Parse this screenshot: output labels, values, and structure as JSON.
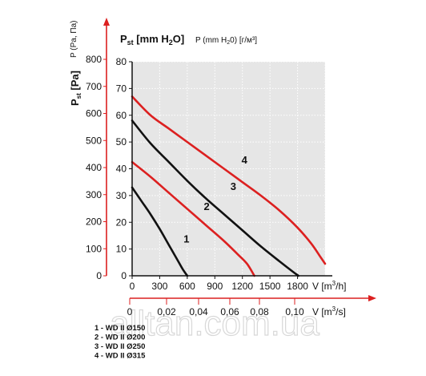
{
  "chart_data": {
    "type": "line",
    "y_primary_label": "Pst [mm H2O]",
    "y_primary_label_ru": "P (mm H20) [г/м³]",
    "y_secondary_label": "Pst [Pa]",
    "y_secondary_label_ru": "P (Pa, Па)",
    "y_ticks": [
      0,
      10,
      20,
      30,
      40,
      50,
      60,
      70,
      80
    ],
    "y_pa_ticks": [
      0,
      100,
      200,
      300,
      400,
      500,
      600,
      700,
      800
    ],
    "x_ticks_m3h": [
      0,
      300,
      600,
      900,
      1200,
      1500,
      1800
    ],
    "x_ticks_m3s": [
      "0",
      "0,02",
      "0,04",
      "0,06",
      "0,08",
      "0,10"
    ],
    "x_label_m3h": "V [m³/h]",
    "x_label_m3s": "V [m³/s]",
    "ylim": [
      0,
      80
    ],
    "xlim": [
      0,
      2100
    ],
    "grid": true,
    "series": [
      {
        "name": "1",
        "color": "#111111",
        "points": [
          [
            0,
            33
          ],
          [
            100,
            28
          ],
          [
            200,
            23
          ],
          [
            300,
            17.5
          ],
          [
            400,
            11.5
          ],
          [
            500,
            5.5
          ],
          [
            550,
            2.5
          ],
          [
            600,
            0
          ]
        ]
      },
      {
        "name": "2",
        "color": "#dc2020",
        "points": [
          [
            0,
            42.5
          ],
          [
            200,
            37
          ],
          [
            400,
            31
          ],
          [
            600,
            25
          ],
          [
            800,
            19
          ],
          [
            1000,
            13
          ],
          [
            1150,
            8
          ],
          [
            1250,
            4.5
          ],
          [
            1330,
            0
          ]
        ]
      },
      {
        "name": "3",
        "color": "#111111",
        "points": [
          [
            0,
            58
          ],
          [
            200,
            49.5
          ],
          [
            400,
            42.5
          ],
          [
            600,
            35.5
          ],
          [
            800,
            29
          ],
          [
            1000,
            23
          ],
          [
            1200,
            17
          ],
          [
            1400,
            11
          ],
          [
            1600,
            5.5
          ],
          [
            1750,
            1.5
          ],
          [
            1810,
            0
          ]
        ]
      },
      {
        "name": "4",
        "color": "#dc2020",
        "points": [
          [
            0,
            67
          ],
          [
            200,
            60
          ],
          [
            400,
            55
          ],
          [
            600,
            50
          ],
          [
            800,
            45
          ],
          [
            1000,
            40
          ],
          [
            1200,
            35
          ],
          [
            1400,
            30
          ],
          [
            1600,
            24.5
          ],
          [
            1800,
            18
          ],
          [
            1950,
            12
          ],
          [
            2050,
            7
          ],
          [
            2100,
            4.5
          ]
        ]
      }
    ],
    "series_labels": [
      {
        "name": "1",
        "x": 560,
        "y": 12.5
      },
      {
        "name": "2",
        "x": 780,
        "y": 24.5
      },
      {
        "name": "3",
        "x": 1070,
        "y": 32
      },
      {
        "name": "4",
        "x": 1190,
        "y": 42
      }
    ]
  },
  "legend": [
    "1 - WD II Ø150",
    "2 - WD II Ø200",
    "3 - WD II Ø250",
    "4 - WD II Ø315"
  ],
  "watermark": "alltan.com.ua"
}
